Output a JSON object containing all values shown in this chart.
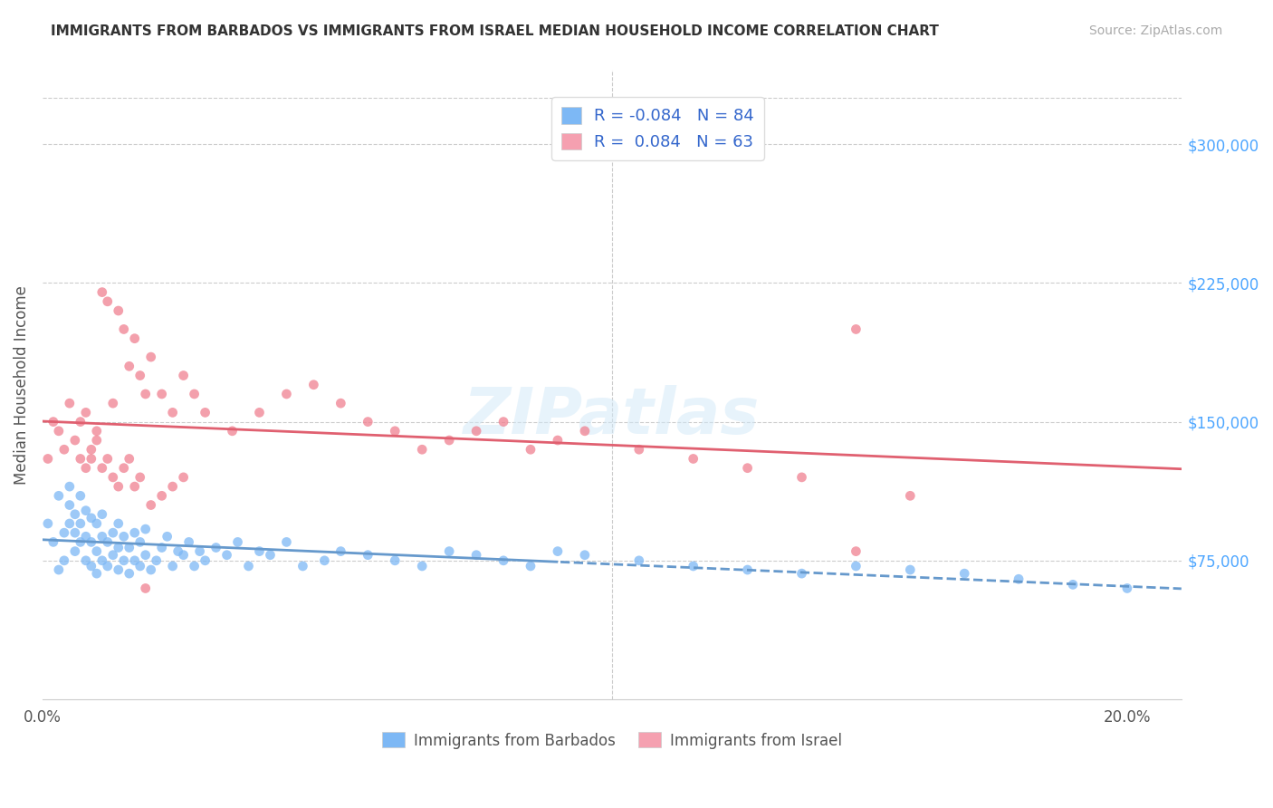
{
  "title": "IMMIGRANTS FROM BARBADOS VS IMMIGRANTS FROM ISRAEL MEDIAN HOUSEHOLD INCOME CORRELATION CHART",
  "source": "Source: ZipAtlas.com",
  "ylabel": "Median Household Income",
  "xlim": [
    0.0,
    0.21
  ],
  "ylim": [
    0,
    340000
  ],
  "yticks": [
    0,
    75000,
    150000,
    225000,
    300000
  ],
  "ytick_labels": [
    "",
    "$75,000",
    "$150,000",
    "$225,000",
    "$300,000"
  ],
  "xticks": [
    0.0,
    0.05,
    0.1,
    0.15,
    0.2
  ],
  "xtick_labels": [
    "0.0%",
    "",
    "",
    "",
    "20.0%"
  ],
  "title_color": "#333333",
  "source_color": "#aaaaaa",
  "axis_label_color": "#555555",
  "ytick_color": "#4da6ff",
  "xtick_color": "#555555",
  "grid_color": "#cccccc",
  "legend_r1": "R = -0.084",
  "legend_n1": "N = 84",
  "legend_r2": "R =  0.084",
  "legend_n2": "N = 63",
  "legend_color1": "#7db8f5",
  "legend_color2": "#f5a0b0",
  "series1_color": "#7db8f5",
  "series2_color": "#f08090",
  "trend1_color": "#6699cc",
  "trend2_color": "#e06070",
  "trend_split_x": 0.095,
  "barbados_x": [
    0.001,
    0.002,
    0.003,
    0.003,
    0.004,
    0.004,
    0.005,
    0.005,
    0.005,
    0.006,
    0.006,
    0.006,
    0.007,
    0.007,
    0.007,
    0.008,
    0.008,
    0.008,
    0.009,
    0.009,
    0.009,
    0.01,
    0.01,
    0.01,
    0.011,
    0.011,
    0.011,
    0.012,
    0.012,
    0.013,
    0.013,
    0.014,
    0.014,
    0.014,
    0.015,
    0.015,
    0.016,
    0.016,
    0.017,
    0.017,
    0.018,
    0.018,
    0.019,
    0.019,
    0.02,
    0.021,
    0.022,
    0.023,
    0.024,
    0.025,
    0.026,
    0.027,
    0.028,
    0.029,
    0.03,
    0.032,
    0.034,
    0.036,
    0.038,
    0.04,
    0.042,
    0.045,
    0.048,
    0.052,
    0.055,
    0.06,
    0.065,
    0.07,
    0.075,
    0.08,
    0.085,
    0.09,
    0.095,
    0.1,
    0.11,
    0.12,
    0.13,
    0.14,
    0.15,
    0.16,
    0.17,
    0.18,
    0.19,
    0.2
  ],
  "barbados_y": [
    95000,
    85000,
    70000,
    110000,
    75000,
    90000,
    95000,
    105000,
    115000,
    80000,
    90000,
    100000,
    85000,
    95000,
    110000,
    75000,
    88000,
    102000,
    72000,
    85000,
    98000,
    68000,
    80000,
    95000,
    75000,
    88000,
    100000,
    72000,
    85000,
    78000,
    90000,
    70000,
    82000,
    95000,
    75000,
    88000,
    68000,
    82000,
    75000,
    90000,
    72000,
    85000,
    78000,
    92000,
    70000,
    75000,
    82000,
    88000,
    72000,
    80000,
    78000,
    85000,
    72000,
    80000,
    75000,
    82000,
    78000,
    85000,
    72000,
    80000,
    78000,
    85000,
    72000,
    75000,
    80000,
    78000,
    75000,
    72000,
    80000,
    78000,
    75000,
    72000,
    80000,
    78000,
    75000,
    72000,
    70000,
    68000,
    72000,
    70000,
    68000,
    65000,
    62000,
    60000
  ],
  "israel_x": [
    0.001,
    0.002,
    0.003,
    0.004,
    0.005,
    0.006,
    0.007,
    0.008,
    0.009,
    0.01,
    0.011,
    0.012,
    0.013,
    0.014,
    0.015,
    0.016,
    0.017,
    0.018,
    0.019,
    0.02,
    0.022,
    0.024,
    0.026,
    0.028,
    0.03,
    0.035,
    0.04,
    0.045,
    0.05,
    0.055,
    0.06,
    0.065,
    0.07,
    0.075,
    0.08,
    0.085,
    0.09,
    0.095,
    0.1,
    0.11,
    0.12,
    0.13,
    0.14,
    0.15,
    0.16,
    0.007,
    0.008,
    0.009,
    0.01,
    0.011,
    0.012,
    0.013,
    0.014,
    0.015,
    0.016,
    0.017,
    0.018,
    0.019,
    0.02,
    0.022,
    0.024,
    0.026,
    0.15
  ],
  "israel_y": [
    130000,
    150000,
    145000,
    135000,
    160000,
    140000,
    150000,
    155000,
    130000,
    145000,
    220000,
    215000,
    160000,
    210000,
    200000,
    180000,
    195000,
    175000,
    165000,
    185000,
    165000,
    155000,
    175000,
    165000,
    155000,
    145000,
    155000,
    165000,
    170000,
    160000,
    150000,
    145000,
    135000,
    140000,
    145000,
    150000,
    135000,
    140000,
    145000,
    135000,
    130000,
    125000,
    120000,
    80000,
    110000,
    130000,
    125000,
    135000,
    140000,
    125000,
    130000,
    120000,
    115000,
    125000,
    130000,
    115000,
    120000,
    60000,
    105000,
    110000,
    115000,
    120000,
    200000
  ]
}
